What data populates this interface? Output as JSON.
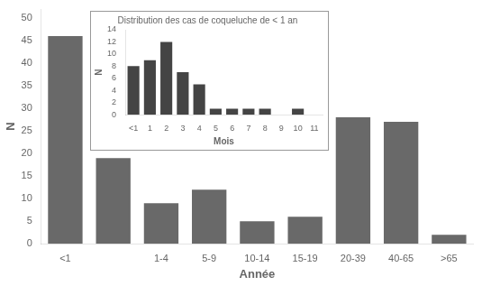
{
  "chart_data": [
    {
      "type": "bar",
      "categories": [
        "<1",
        null,
        "1-4",
        "5-9",
        "10-14",
        "15-19",
        "20-39",
        "40-65",
        ">65"
      ],
      "values": [
        46,
        19,
        9,
        12,
        5,
        6,
        28,
        27,
        2
      ],
      "color": "#696969",
      "xlabel": "Année",
      "ylabel": "N",
      "ylim": [
        0,
        52
      ],
      "yticks": [
        0,
        5,
        10,
        15,
        20,
        25,
        30,
        35,
        40,
        45,
        50
      ],
      "grid": false
    },
    {
      "type": "bar",
      "title": "Distribution des cas de coqueluche de < 1 an",
      "categories": [
        "<1",
        "1",
        "2",
        "3",
        "4",
        "5",
        "6",
        "7",
        "8",
        "9",
        "10",
        "11"
      ],
      "values": [
        8,
        9,
        12,
        7,
        5,
        1,
        1,
        1,
        1,
        0,
        1,
        0
      ],
      "color": "#444444",
      "xlabel": "Mois",
      "ylabel": "N",
      "ylim": [
        0,
        14
      ],
      "yticks": [
        0,
        2,
        4,
        6,
        8,
        10,
        12,
        14
      ],
      "grid": false
    }
  ]
}
